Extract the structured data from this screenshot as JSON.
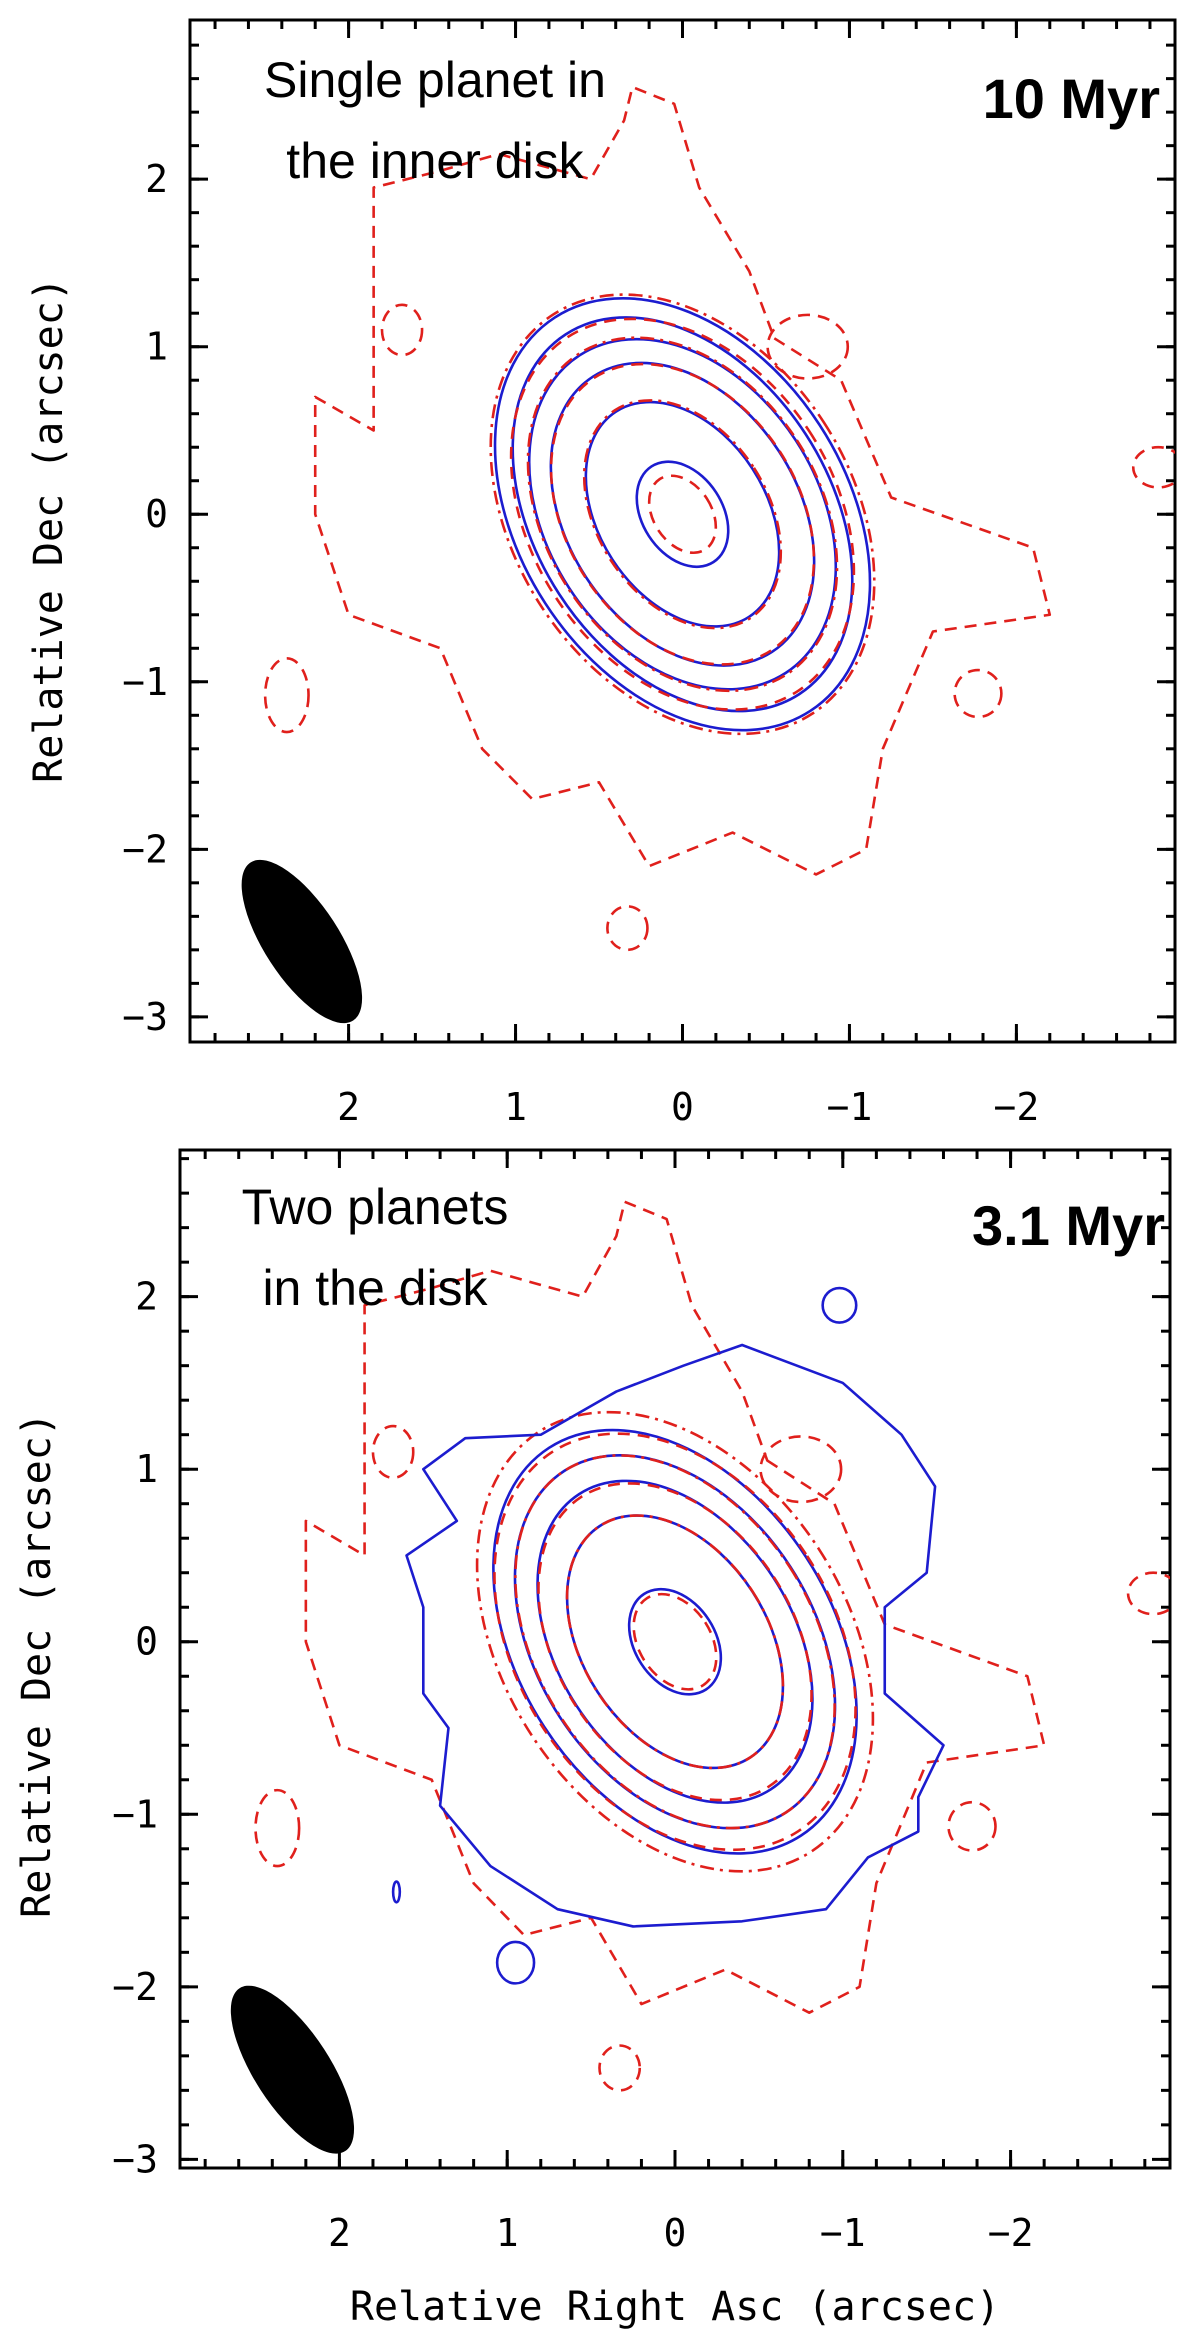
{
  "chart_data": [
    {
      "type": "contour",
      "panel_text": [
        "Single planet in",
        "the inner disk"
      ],
      "age_label": "10 Myr",
      "xlabel": "",
      "ylabel": "Relative Dec (arcsec)",
      "x_ticks": [
        "2",
        "1",
        "0",
        "−1",
        "−2"
      ],
      "x_tick_values": [
        2,
        1,
        0,
        -1,
        -2
      ],
      "y_ticks": [
        "2",
        "1",
        "0",
        "−1",
        "−2",
        "−3"
      ],
      "y_tick_values": [
        2,
        1,
        0,
        -1,
        -2,
        -3
      ],
      "xlim": [
        2.95,
        -2.95
      ],
      "ylim": [
        -3.15,
        2.95
      ],
      "center": [
        0,
        0
      ],
      "position_angle_deg": 33,
      "model_contours": [
        {
          "major": 0.34,
          "minor": 0.24
        },
        {
          "major": 0.73,
          "minor": 0.5
        },
        {
          "major": 0.98,
          "minor": 0.69
        },
        {
          "major": 1.13,
          "minor": 0.81
        },
        {
          "major": 1.28,
          "minor": 0.88
        },
        {
          "major": 1.4,
          "minor": 0.98
        }
      ],
      "observed_contours": [
        {
          "major": 0.25,
          "minor": 0.17
        },
        {
          "major": 0.74,
          "minor": 0.5
        },
        {
          "major": 0.97,
          "minor": 0.68
        },
        {
          "major": 1.14,
          "minor": 0.8
        },
        {
          "major": 1.26,
          "minor": 0.89
        },
        {
          "major": 1.42,
          "minor": 0.99
        }
      ],
      "observed_outer_contour": [
        [
          0.55,
          1.05
        ],
        [
          0.95,
          0.8
        ],
        [
          1.25,
          0.1
        ],
        [
          2.1,
          -0.2
        ],
        [
          2.2,
          -0.6
        ],
        [
          1.5,
          -0.7
        ],
        [
          1.2,
          -1.4
        ],
        [
          1.1,
          -2.0
        ],
        [
          0.8,
          -2.15
        ],
        [
          0.3,
          -1.9
        ],
        [
          -0.2,
          -2.1
        ],
        [
          -0.5,
          -1.6
        ],
        [
          -0.9,
          -1.7
        ],
        [
          -1.2,
          -1.4
        ],
        [
          -1.45,
          -0.8
        ],
        [
          -2.0,
          -0.6
        ],
        [
          -2.2,
          0.0
        ],
        [
          -2.2,
          0.7
        ],
        [
          -1.85,
          0.5
        ],
        [
          -1.85,
          1.1
        ],
        [
          -1.85,
          1.95
        ],
        [
          -1.45,
          2.05
        ],
        [
          -1.1,
          2.15
        ],
        [
          -0.55,
          2.0
        ],
        [
          -0.35,
          2.35
        ],
        [
          -0.3,
          2.55
        ],
        [
          -0.05,
          2.45
        ],
        [
          0.1,
          1.95
        ],
        [
          0.4,
          1.45
        ]
      ],
      "observed_islands": [
        {
          "x": 1.68,
          "y": 1.1,
          "rx": 0.12,
          "ry": 0.15
        },
        {
          "x": -0.75,
          "y": 1.0,
          "rx": 0.24,
          "ry": 0.19
        },
        {
          "x": 2.37,
          "y": -1.08,
          "rx": 0.13,
          "ry": 0.22
        },
        {
          "x": -1.77,
          "y": -1.07,
          "rx": 0.14,
          "ry": 0.14
        },
        {
          "x": 0.33,
          "y": -2.47,
          "rx": 0.12,
          "ry": 0.13
        },
        {
          "x": -2.85,
          "y": 0.28,
          "rx": 0.15,
          "ry": 0.12
        }
      ],
      "model_islands": [],
      "beam": {
        "x": 2.28,
        "y": -2.55,
        "major": 0.9,
        "minor": 0.45,
        "position_angle_deg": 33
      }
    },
    {
      "type": "contour",
      "panel_text": [
        "Two planets",
        "in the disk"
      ],
      "age_label": "3.1 Myr",
      "xlabel": "Relative Right Asc (arcsec)",
      "ylabel": "Relative Dec (arcsec)",
      "x_ticks": [
        "2",
        "1",
        "0",
        "−1",
        "−2"
      ],
      "x_tick_values": [
        2,
        1,
        0,
        -1,
        -2
      ],
      "y_ticks": [
        "2",
        "1",
        "0",
        "−1",
        "−2",
        "−3"
      ],
      "y_tick_values": [
        2,
        1,
        0,
        -1,
        -2,
        -3
      ],
      "xlim": [
        2.95,
        -2.95
      ],
      "ylim": [
        -3.05,
        2.85
      ],
      "center": [
        0,
        0
      ],
      "position_angle_deg": 33,
      "model_contours": [
        {
          "major": 0.33,
          "minor": 0.24
        },
        {
          "major": 0.8,
          "minor": 0.55
        },
        {
          "major": 1.02,
          "minor": 0.7
        },
        {
          "major": 1.18,
          "minor": 0.82
        },
        {
          "major": 1.34,
          "minor": 0.93
        }
      ],
      "model_outer_contour": [
        [
          1.0,
          1.5
        ],
        [
          0.4,
          1.72
        ],
        [
          0.05,
          1.6
        ],
        [
          -0.35,
          1.45
        ],
        [
          -0.8,
          1.2
        ],
        [
          -1.25,
          1.18
        ],
        [
          -1.5,
          1.0
        ],
        [
          -1.3,
          0.7
        ],
        [
          -1.6,
          0.5
        ],
        [
          -1.5,
          0.2
        ],
        [
          -1.5,
          -0.3
        ],
        [
          -1.35,
          -0.5
        ],
        [
          -1.4,
          -0.95
        ],
        [
          -1.1,
          -1.3
        ],
        [
          -0.7,
          -1.55
        ],
        [
          -0.25,
          -1.65
        ],
        [
          0.4,
          -1.62
        ],
        [
          0.9,
          -1.55
        ],
        [
          1.15,
          -1.25
        ],
        [
          1.45,
          -1.1
        ],
        [
          1.45,
          -0.9
        ],
        [
          1.6,
          -0.6
        ],
        [
          1.25,
          -0.3
        ],
        [
          1.25,
          0.2
        ],
        [
          1.5,
          0.4
        ],
        [
          1.55,
          0.9
        ],
        [
          1.35,
          1.2
        ]
      ],
      "observed_contours": [
        {
          "major": 0.3,
          "minor": 0.21
        },
        {
          "major": 0.8,
          "minor": 0.54
        },
        {
          "major": 1.0,
          "minor": 0.69
        },
        {
          "major": 1.18,
          "minor": 0.8
        },
        {
          "major": 1.31,
          "minor": 0.92
        },
        {
          "major": 1.45,
          "minor": 1.0
        }
      ],
      "observed_outer_contour": [
        [
          0.55,
          1.05
        ],
        [
          0.95,
          0.8
        ],
        [
          1.25,
          0.1
        ],
        [
          2.1,
          -0.2
        ],
        [
          2.2,
          -0.6
        ],
        [
          1.5,
          -0.7
        ],
        [
          1.2,
          -1.4
        ],
        [
          1.1,
          -2.0
        ],
        [
          0.8,
          -2.15
        ],
        [
          0.3,
          -1.9
        ],
        [
          -0.2,
          -2.1
        ],
        [
          -0.5,
          -1.6
        ],
        [
          -0.9,
          -1.7
        ],
        [
          -1.2,
          -1.4
        ],
        [
          -1.45,
          -0.8
        ],
        [
          -2.0,
          -0.6
        ],
        [
          -2.2,
          0.0
        ],
        [
          -2.2,
          0.7
        ],
        [
          -1.85,
          0.5
        ],
        [
          -1.85,
          1.1
        ],
        [
          -1.85,
          1.95
        ],
        [
          -1.45,
          2.05
        ],
        [
          -1.1,
          2.15
        ],
        [
          -0.55,
          2.0
        ],
        [
          -0.35,
          2.35
        ],
        [
          -0.3,
          2.55
        ],
        [
          -0.05,
          2.45
        ],
        [
          0.1,
          1.95
        ],
        [
          0.4,
          1.45
        ]
      ],
      "observed_islands": [
        {
          "x": 1.68,
          "y": 1.1,
          "rx": 0.12,
          "ry": 0.15
        },
        {
          "x": -0.75,
          "y": 1.0,
          "rx": 0.24,
          "ry": 0.19
        },
        {
          "x": 2.37,
          "y": -1.08,
          "rx": 0.13,
          "ry": 0.22
        },
        {
          "x": -1.77,
          "y": -1.07,
          "rx": 0.14,
          "ry": 0.14
        },
        {
          "x": 0.33,
          "y": -2.47,
          "rx": 0.12,
          "ry": 0.13
        },
        {
          "x": -2.85,
          "y": 0.28,
          "rx": 0.15,
          "ry": 0.12
        }
      ],
      "model_islands": [
        {
          "x": -0.98,
          "y": 1.95,
          "rx": 0.1,
          "ry": 0.1
        },
        {
          "x": 0.95,
          "y": -1.86,
          "rx": 0.11,
          "ry": 0.12
        },
        {
          "x": 1.66,
          "y": -1.45,
          "rx": 0.02,
          "ry": 0.06
        }
      ],
      "beam": {
        "x": 2.28,
        "y": -2.48,
        "major": 0.9,
        "minor": 0.45,
        "position_angle_deg": 33
      }
    }
  ]
}
